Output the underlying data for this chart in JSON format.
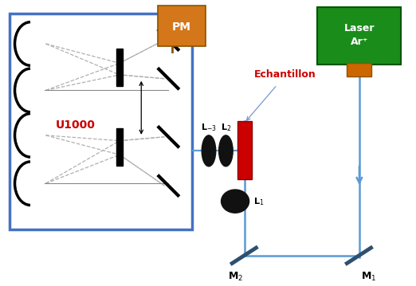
{
  "bg_color": "#ffffff",
  "box_color": "#4472c4",
  "u1000_text": "U1000",
  "u1000_color": "#cc0000",
  "pm_color": "#d4761a",
  "pm_text": "PM",
  "laser_color": "#1a8c1a",
  "laser_text": "Laser\nAr⁺",
  "echantillon_text": "Echantillon",
  "echantillon_color": "#cc0000",
  "beam_color": "#5b9bd5",
  "sample_color": "#cc0000",
  "mirror_color": "#2f4f6f",
  "lens_color": "#111111",
  "grating_color": "#111111",
  "concave_color": "#111111",
  "flat_mirror_color": "#111111",
  "internal_beam_color": "#b0b0b0"
}
